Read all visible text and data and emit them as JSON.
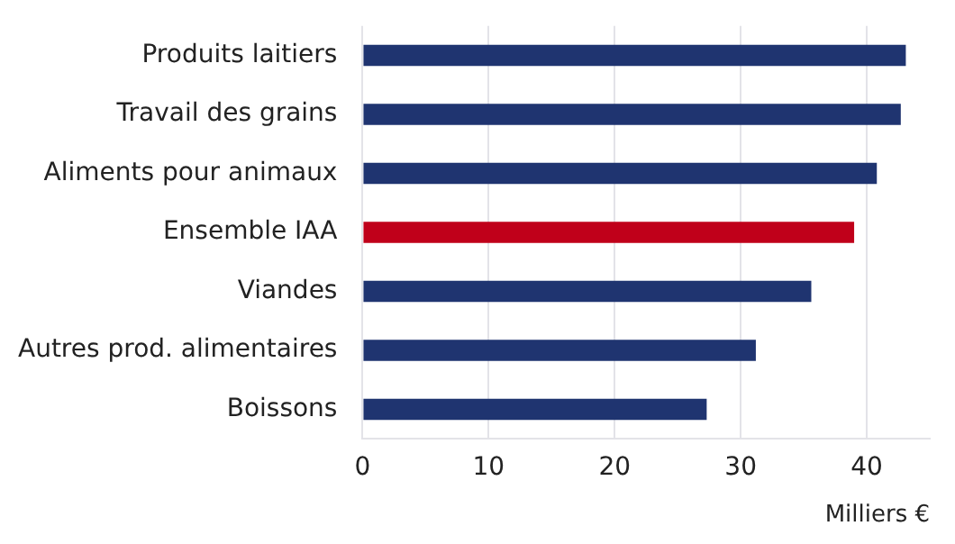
{
  "chart_data": {
    "type": "bar",
    "orientation": "horizontal",
    "xlabel": "Milliers €",
    "categories": [
      "Produits laitiers",
      "Travail des grains",
      "Aliments pour animaux",
      "Ensemble IAA",
      "Viandes",
      "Autres prod. alimentaires",
      "Boissons"
    ],
    "values": [
      43.1,
      42.7,
      40.8,
      39.0,
      35.6,
      31.2,
      27.3
    ],
    "colors": [
      "#1f3470",
      "#1f3470",
      "#1f3470",
      "#c0001a",
      "#1f3470",
      "#1f3470",
      "#1f3470"
    ],
    "xlim": [
      0,
      45
    ],
    "xticks": [
      0,
      10,
      20,
      30,
      40
    ],
    "grid": "x",
    "legend": false
  }
}
